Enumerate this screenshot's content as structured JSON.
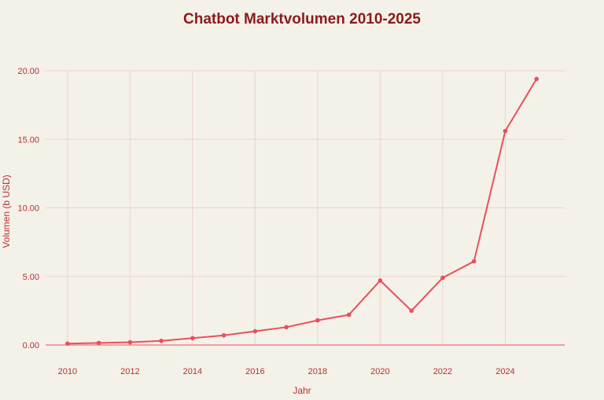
{
  "chart_data": {
    "type": "line",
    "title": "Chatbot Marktvolumen 2010-2025",
    "xlabel": "Jahr",
    "ylabel": "Volumen (b USD)",
    "x": [
      2010,
      2011,
      2012,
      2013,
      2014,
      2015,
      2016,
      2017,
      2018,
      2019,
      2020,
      2021,
      2022,
      2023,
      2024,
      2025
    ],
    "series": [
      {
        "values": [
          0.1,
          0.15,
          0.2,
          0.3,
          0.5,
          0.7,
          1.0,
          1.3,
          1.8,
          2.2,
          4.7,
          2.5,
          4.9,
          6.1,
          15.6,
          19.4
        ]
      }
    ],
    "xlim": [
      2009.3,
      2025.9
    ],
    "ylim": [
      0,
      20
    ],
    "xticks": [
      2010,
      2012,
      2014,
      2016,
      2018,
      2020,
      2022,
      2024
    ],
    "xtick_labels": [
      "2010",
      "2012",
      "2014",
      "2016",
      "2018",
      "2020",
      "2022",
      "2024"
    ],
    "yticks": [
      0,
      5,
      10,
      15,
      20
    ],
    "ytick_labels": [
      "0.00",
      "5.00",
      "10.00",
      "15.00",
      "20.00"
    ],
    "grid": true,
    "colors": {
      "line": "#e8505b",
      "grid": "#ecd5c4",
      "axis": "#e8505b",
      "text": "#b8322f",
      "title": "#8b1a1a",
      "background": "#f4f1e9"
    }
  }
}
